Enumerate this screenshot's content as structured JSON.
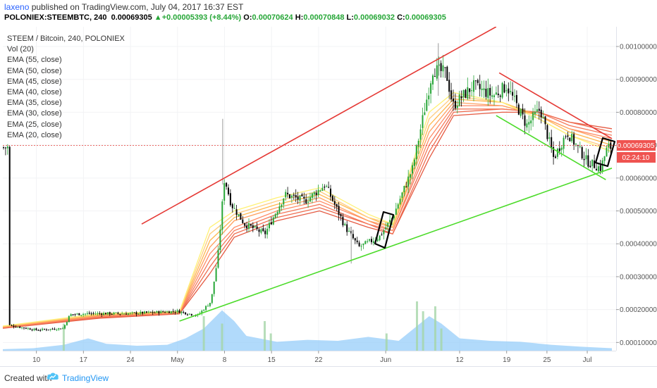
{
  "header": {
    "author": "laxeno",
    "published_text": " published on TradingView.com, July 04, 2017 16:37 EST",
    "symbol": "POLONIEX:STEEMBTC, 240",
    "price": "0.00069305",
    "change_arrow": "▲",
    "change": "+0.00005393 (+8.44%)",
    "open_label": "O:",
    "open": "0.00070624",
    "high_label": "H:",
    "high": "0.00070848",
    "low_label": "L:",
    "low": "0.00069032",
    "close_label": "C:",
    "close": "0.00069305"
  },
  "legend": {
    "title": "STEEM / Bitcoin, 240, POLONIEX",
    "items": [
      "Vol (20)",
      "EMA (55, close)",
      "EMA (50, close)",
      "EMA (45, close)",
      "EMA (40, close)",
      "EMA (35, close)",
      "EMA (30, close)",
      "EMA (25, close)",
      "EMA (20, close)"
    ]
  },
  "price_tag": {
    "value": "0.00069305",
    "countdown": "02:24:10"
  },
  "footer": {
    "created_with": "Created with",
    "brand": "TradingView"
  },
  "colors": {
    "up": "#26a637",
    "down": "#000000",
    "upper_line": "#e53935",
    "lower_line": "#4cdb2a",
    "volume_area": "#90caf9",
    "volume_bar": "#a5d6a7",
    "price_tag": "#ef5350"
  },
  "icons": [
    "tradingview-cloud-icon",
    "price-tag-marker-icon"
  ],
  "chart_data": {
    "type": "candlestick",
    "interval": "240",
    "y_axis_ticks": [
      "0.00100000",
      "0.00090000",
      "0.00080000",
      "0.00070000",
      "0.00060000",
      "0.00050000",
      "0.00040000",
      "0.00030000",
      "0.00020000",
      "0.00010000"
    ],
    "ylim": [
      7.5e-05,
      0.00106
    ],
    "x_axis_ticks": [
      "10",
      "17",
      "24",
      "May",
      "8",
      "15",
      "22",
      "Jun",
      "12",
      "19",
      "25",
      "Jul"
    ],
    "price_path": [
      [
        "2017-04-06",
        0.000152
      ],
      [
        "2017-04-10",
        0.000138
      ],
      [
        "2017-04-14",
        0.000143
      ],
      [
        "2017-04-15",
        0.000185
      ],
      [
        "2017-04-18",
        0.000188
      ],
      [
        "2017-04-24",
        0.000188
      ],
      [
        "2017-04-28",
        0.000192
      ],
      [
        "2017-05-01",
        0.000195
      ],
      [
        "2017-05-04",
        0.000182
      ],
      [
        "2017-05-06",
        0.000225
      ],
      [
        "2017-05-07",
        0.00036
      ],
      [
        "2017-05-08",
        0.0006
      ],
      [
        "2017-05-09",
        0.00052
      ],
      [
        "2017-05-11",
        0.00046
      ],
      [
        "2017-05-14",
        0.00043
      ],
      [
        "2017-05-17",
        0.00055
      ],
      [
        "2017-05-20",
        0.00053
      ],
      [
        "2017-05-23",
        0.00058
      ],
      [
        "2017-05-26",
        0.00045
      ],
      [
        "2017-05-28",
        0.00039
      ],
      [
        "2017-05-31",
        0.00042
      ],
      [
        "2017-06-02",
        0.00048
      ],
      [
        "2017-06-05",
        0.00063
      ],
      [
        "2017-06-07",
        0.00083
      ],
      [
        "2017-06-08",
        0.00093
      ],
      [
        "2017-06-10",
        0.00092
      ],
      [
        "2017-06-11",
        0.00082
      ],
      [
        "2017-06-14",
        0.00088
      ],
      [
        "2017-06-17",
        0.00085
      ],
      [
        "2017-06-19",
        0.00088
      ],
      [
        "2017-06-22",
        0.00076
      ],
      [
        "2017-06-24",
        0.00081
      ],
      [
        "2017-06-26",
        0.00066
      ],
      [
        "2017-06-28",
        0.00074
      ],
      [
        "2017-07-01",
        0.00065
      ],
      [
        "2017-07-03",
        0.00063
      ],
      [
        "2017-07-04",
        0.000693
      ]
    ],
    "ema_ribbon": [
      {
        "name": "EMA (20, close)",
        "color": "#fff176",
        "values": [
          [
            0,
            0.00015
          ],
          [
            0.16,
            0.000188
          ],
          [
            0.29,
            0.000194
          ],
          [
            0.34,
            0.00045
          ],
          [
            0.38,
            0.0005
          ],
          [
            0.45,
            0.00054
          ],
          [
            0.52,
            0.00057
          ],
          [
            0.6,
            0.00049
          ],
          [
            0.64,
            0.00046
          ],
          [
            0.7,
            0.0008
          ],
          [
            0.74,
            0.00086
          ],
          [
            0.82,
            0.00083
          ],
          [
            0.88,
            0.00078
          ],
          [
            0.93,
            0.00073
          ],
          [
            1,
            0.00068
          ]
        ]
      },
      {
        "name": "EMA (25, close)",
        "color": "#ffcc80",
        "values": [
          [
            0,
            0.000149
          ],
          [
            0.16,
            0.000186
          ],
          [
            0.29,
            0.000193
          ],
          [
            0.34,
            0.00043
          ],
          [
            0.38,
            0.00049
          ],
          [
            0.45,
            0.00053
          ],
          [
            0.52,
            0.00056
          ],
          [
            0.6,
            0.00048
          ],
          [
            0.64,
            0.00046
          ],
          [
            0.7,
            0.00078
          ],
          [
            0.74,
            0.00085
          ],
          [
            0.82,
            0.00083
          ],
          [
            0.88,
            0.00078
          ],
          [
            0.93,
            0.00073
          ],
          [
            1,
            0.00069
          ]
        ]
      },
      {
        "name": "EMA (30, close)",
        "color": "#ffb74d",
        "values": [
          [
            0,
            0.000148
          ],
          [
            0.16,
            0.000184
          ],
          [
            0.29,
            0.000192
          ],
          [
            0.34,
            0.00041
          ],
          [
            0.38,
            0.00048
          ],
          [
            0.45,
            0.00052
          ],
          [
            0.52,
            0.00055
          ],
          [
            0.6,
            0.00048
          ],
          [
            0.64,
            0.00045
          ],
          [
            0.7,
            0.00076
          ],
          [
            0.74,
            0.00084
          ],
          [
            0.82,
            0.00083
          ],
          [
            0.88,
            0.00079
          ],
          [
            0.93,
            0.00074
          ],
          [
            1,
            0.0007
          ]
        ]
      },
      {
        "name": "EMA (35, close)",
        "color": "#ffa060",
        "values": [
          [
            0,
            0.000147
          ],
          [
            0.16,
            0.000182
          ],
          [
            0.29,
            0.000191
          ],
          [
            0.34,
            0.00039
          ],
          [
            0.38,
            0.00047
          ],
          [
            0.45,
            0.00051
          ],
          [
            0.52,
            0.00054
          ],
          [
            0.6,
            0.00047
          ],
          [
            0.64,
            0.00045
          ],
          [
            0.7,
            0.00074
          ],
          [
            0.74,
            0.00083
          ],
          [
            0.82,
            0.00082
          ],
          [
            0.88,
            0.00079
          ],
          [
            0.93,
            0.00075
          ],
          [
            1,
            0.00071
          ]
        ]
      },
      {
        "name": "EMA (40, close)",
        "color": "#ff8a65",
        "values": [
          [
            0,
            0.000146
          ],
          [
            0.16,
            0.00018
          ],
          [
            0.29,
            0.00019
          ],
          [
            0.34,
            0.00037
          ],
          [
            0.38,
            0.00045
          ],
          [
            0.45,
            0.0005
          ],
          [
            0.52,
            0.00053
          ],
          [
            0.6,
            0.00047
          ],
          [
            0.64,
            0.00044
          ],
          [
            0.7,
            0.00072
          ],
          [
            0.74,
            0.00082
          ],
          [
            0.82,
            0.00082
          ],
          [
            0.88,
            0.00079
          ],
          [
            0.93,
            0.00075
          ],
          [
            1,
            0.00072
          ]
        ]
      },
      {
        "name": "EMA (45, close)",
        "color": "#f4795b",
        "values": [
          [
            0,
            0.000145
          ],
          [
            0.16,
            0.000178
          ],
          [
            0.29,
            0.000189
          ],
          [
            0.34,
            0.00035
          ],
          [
            0.38,
            0.00044
          ],
          [
            0.45,
            0.00049
          ],
          [
            0.52,
            0.00052
          ],
          [
            0.6,
            0.00046
          ],
          [
            0.64,
            0.00044
          ],
          [
            0.7,
            0.0007
          ],
          [
            0.74,
            0.00081
          ],
          [
            0.82,
            0.00081
          ],
          [
            0.88,
            0.0008
          ],
          [
            0.93,
            0.00076
          ],
          [
            1,
            0.00073
          ]
        ]
      },
      {
        "name": "EMA (50, close)",
        "color": "#ef6c4f",
        "values": [
          [
            0,
            0.000144
          ],
          [
            0.16,
            0.000176
          ],
          [
            0.29,
            0.000188
          ],
          [
            0.34,
            0.00033
          ],
          [
            0.38,
            0.00043
          ],
          [
            0.45,
            0.00048
          ],
          [
            0.52,
            0.00051
          ],
          [
            0.6,
            0.00046
          ],
          [
            0.64,
            0.00043
          ],
          [
            0.7,
            0.00068
          ],
          [
            0.74,
            0.0008
          ],
          [
            0.82,
            0.00081
          ],
          [
            0.88,
            0.0008
          ],
          [
            0.93,
            0.00077
          ],
          [
            1,
            0.00074
          ]
        ]
      },
      {
        "name": "EMA (55, close)",
        "color": "#e55a42",
        "values": [
          [
            0,
            0.000143
          ],
          [
            0.16,
            0.000174
          ],
          [
            0.29,
            0.000187
          ],
          [
            0.34,
            0.00031
          ],
          [
            0.38,
            0.00042
          ],
          [
            0.45,
            0.00047
          ],
          [
            0.52,
            0.0005
          ],
          [
            0.6,
            0.00045
          ],
          [
            0.64,
            0.00043
          ],
          [
            0.7,
            0.00066
          ],
          [
            0.74,
            0.00079
          ],
          [
            0.82,
            0.0008
          ],
          [
            0.88,
            0.0008
          ],
          [
            0.93,
            0.00077
          ],
          [
            1,
            0.00075
          ]
        ]
      }
    ],
    "trendlines": [
      {
        "color": "upper_line",
        "from": [
          0.228,
          0.00046
        ],
        "to": [
          0.81,
          0.00106
        ]
      },
      {
        "color": "lower_line",
        "from": [
          0.29,
          0.000165
        ],
        "to": [
          1.0,
          0.00063
        ]
      },
      {
        "color": "upper_line",
        "from": [
          0.815,
          0.00092
        ],
        "to": [
          1.0,
          0.00072
        ]
      },
      {
        "color": "lower_line",
        "from": [
          0.81,
          0.00079
        ],
        "to": [
          0.99,
          0.000595
        ]
      }
    ],
    "volume_area": [
      [
        0,
        0.03
      ],
      [
        0.05,
        0.05
      ],
      [
        0.1,
        0.12
      ],
      [
        0.14,
        0.25
      ],
      [
        0.17,
        0.14
      ],
      [
        0.22,
        0.1
      ],
      [
        0.27,
        0.12
      ],
      [
        0.3,
        0.25
      ],
      [
        0.33,
        0.45
      ],
      [
        0.36,
        0.82
      ],
      [
        0.38,
        0.6
      ],
      [
        0.4,
        0.3
      ],
      [
        0.45,
        0.18
      ],
      [
        0.5,
        0.22
      ],
      [
        0.55,
        0.2
      ],
      [
        0.6,
        0.28
      ],
      [
        0.65,
        0.2
      ],
      [
        0.68,
        0.5
      ],
      [
        0.7,
        0.7
      ],
      [
        0.72,
        0.55
      ],
      [
        0.75,
        0.25
      ],
      [
        0.8,
        0.2
      ],
      [
        0.85,
        0.18
      ],
      [
        0.9,
        0.12
      ],
      [
        0.95,
        0.08
      ],
      [
        1,
        0.05
      ]
    ],
    "volume_spikes": [
      [
        0.1,
        0.55
      ],
      [
        0.33,
        0.7
      ],
      [
        0.36,
        0.55
      ],
      [
        0.43,
        0.6
      ],
      [
        0.44,
        0.35
      ],
      [
        0.68,
        1.0
      ],
      [
        0.69,
        0.8
      ],
      [
        0.71,
        0.9
      ],
      [
        0.72,
        0.45
      ],
      [
        0.63,
        0.35
      ]
    ]
  }
}
